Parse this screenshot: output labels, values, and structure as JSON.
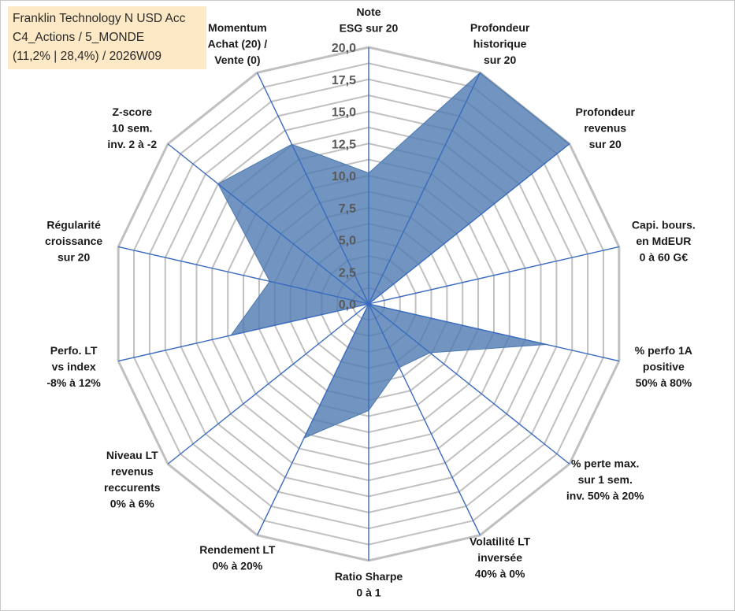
{
  "info_box": {
    "line1": "Franklin Technology N USD Acc",
    "line2": "C4_Actions / 5_MONDE",
    "line3": "(11,2% | 28,4%) / 2026W09"
  },
  "colors": {
    "fill": "#4e7ab0",
    "axis": "#3a6bbf",
    "grid": "#c0c0c0",
    "info_bg": "#fde9c4"
  },
  "chart_data": {
    "type": "radar",
    "title": "",
    "rlim": [
      0,
      20
    ],
    "ticks": [
      "0,0",
      "2,5",
      "5,0",
      "7,5",
      "10,0",
      "12,5",
      "15,0",
      "17,5",
      "20,0"
    ],
    "tick_values": [
      0,
      2.5,
      5,
      7.5,
      10,
      12.5,
      15,
      17.5,
      20
    ],
    "axes": [
      {
        "label": [
          "Note",
          "ESG sur 20"
        ],
        "value": 10.2
      },
      {
        "label": [
          "Profondeur",
          "historique",
          "sur 20"
        ],
        "value": 20
      },
      {
        "label": [
          "Profondeur",
          "revenus",
          "sur 20"
        ],
        "value": 20
      },
      {
        "label": [
          "Capi. bours.",
          "en MdEUR",
          "0 à 60 G€"
        ],
        "value": 0
      },
      {
        "label": [
          "% perfo 1A",
          "positive",
          "50% à 80%"
        ],
        "value": 14.2
      },
      {
        "label": [
          "% perte max.",
          "sur 1 sem.",
          "inv. 50% à 20%"
        ],
        "value": 6.1
      },
      {
        "label": [
          "Volatilité LT",
          "inversée",
          "40% à 0%"
        ],
        "value": 5.5
      },
      {
        "label": [
          "Ratio Sharpe",
          "0 à 1"
        ],
        "value": 8.3
      },
      {
        "label": [
          "Rendement LT",
          "0% à 20%"
        ],
        "value": 11.6
      },
      {
        "label": [
          "Niveau LT",
          "revenus",
          "reccurents",
          "0% à 6%"
        ],
        "value": 0
      },
      {
        "label": [
          "Perfo. LT",
          "vs index",
          "-8% à 12%"
        ],
        "value": 11.0
      },
      {
        "label": [
          "Régularité",
          "croissance",
          "sur 20"
        ],
        "value": 7.9
      },
      {
        "label": [
          "Z-score",
          "10 sem.",
          "inv. 2 à -2"
        ],
        "value": 15.0
      },
      {
        "label": [
          "Momentum",
          "Achat (20) /",
          "Vente (0)"
        ],
        "value": 13.8
      }
    ]
  }
}
